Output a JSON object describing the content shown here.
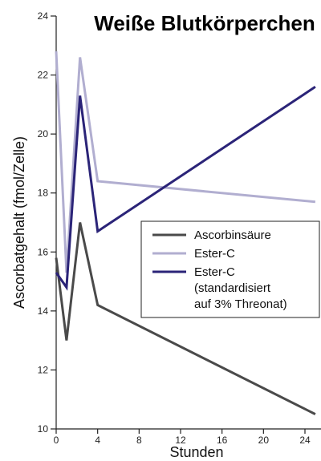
{
  "chart_data": {
    "type": "line",
    "title": "Weiße Blutkörperchen",
    "xlabel": "Stunden",
    "ylabel": "Ascorbatgehalt (fmol/Zelle)",
    "xlim": [
      -1,
      25
    ],
    "ylim": [
      10,
      24
    ],
    "xticks": [
      0,
      4,
      8,
      12,
      16,
      20,
      24
    ],
    "xtick_labels": [
      "0",
      "4",
      "8",
      "12",
      "16",
      "20",
      "24"
    ],
    "yticks": [
      10,
      12,
      14,
      16,
      18,
      20,
      22,
      24
    ],
    "ytick_labels": [
      "10",
      "12",
      "14",
      "16",
      "18",
      "20",
      "22",
      "24"
    ],
    "grid": false,
    "legend_position": "right",
    "series": [
      {
        "name": "Ascorbinsäure",
        "color": "#4a4a4a",
        "x": [
          0,
          1,
          2.3,
          4,
          25
        ],
        "y": [
          15.8,
          13.0,
          17.0,
          14.2,
          10.5
        ]
      },
      {
        "name": "Ester-C",
        "color": "#b1aed0",
        "x": [
          0,
          1,
          2.3,
          4,
          25
        ],
        "y": [
          22.8,
          15.3,
          22.6,
          18.4,
          17.7
        ]
      },
      {
        "name": "Ester-C",
        "legend_lines": [
          "Ester-C",
          "(standardisiert",
          "auf 3% Threonat)"
        ],
        "color": "#2b2478",
        "x": [
          0,
          1,
          2.3,
          4,
          25
        ],
        "y": [
          15.3,
          14.8,
          21.3,
          16.7,
          21.6
        ]
      }
    ]
  }
}
